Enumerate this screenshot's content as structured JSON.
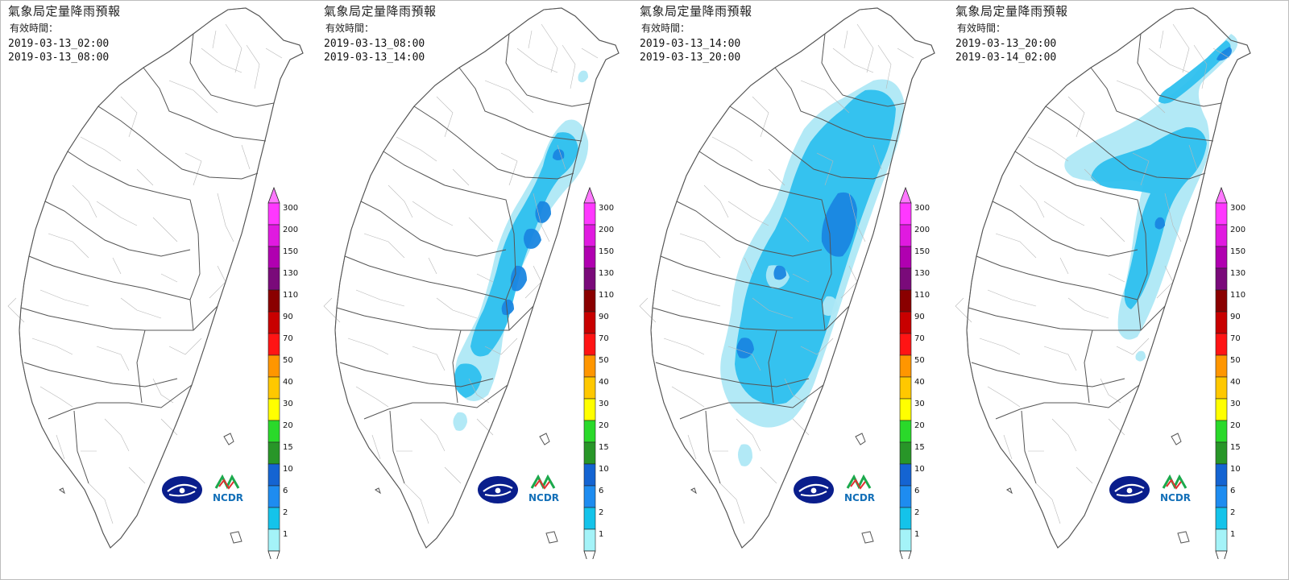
{
  "panels": [
    {
      "title": "氣象局定量降雨預報",
      "valid_label": "有效時間：",
      "start": "2019-03-13_02:00",
      "end": "2019-03-13_08:00",
      "rain": "none"
    },
    {
      "title": "氣象局定量降雨預報",
      "valid_label": "有效時間：",
      "start": "2019-03-13_08:00",
      "end": "2019-03-13_14:00",
      "rain": "p2"
    },
    {
      "title": "氣象局定量降雨預報",
      "valid_label": "有效時間：",
      "start": "2019-03-13_14:00",
      "end": "2019-03-13_20:00",
      "rain": "p3"
    },
    {
      "title": "氣象局定量降雨預報",
      "valid_label": "有效時間：",
      "start": "2019-03-13_20:00",
      "end": "2019-03-14_02:00",
      "rain": "p4"
    }
  ],
  "legend": {
    "levels": [
      "300",
      "200",
      "150",
      "130",
      "110",
      "90",
      "70",
      "50",
      "40",
      "30",
      "20",
      "15",
      "10",
      "6",
      "2",
      "1"
    ],
    "colors": [
      "#ff38ff",
      "#e01ae0",
      "#b000b0",
      "#7a0a7a",
      "#8a0000",
      "#c80000",
      "#ff1414",
      "#ff9600",
      "#ffc800",
      "#ffff00",
      "#2ad92a",
      "#289628",
      "#1464d2",
      "#1e8cf0",
      "#14c3ea",
      "#a4f3f8"
    ]
  },
  "logos": {
    "cwb": "cwb-logo-icon",
    "ncdr_text": "NCDR"
  },
  "colors": {
    "light_blue": "#aee8f5",
    "mid_blue": "#2ec0ee",
    "dark_blue": "#1a86e0",
    "border": "#bdbdbd"
  }
}
